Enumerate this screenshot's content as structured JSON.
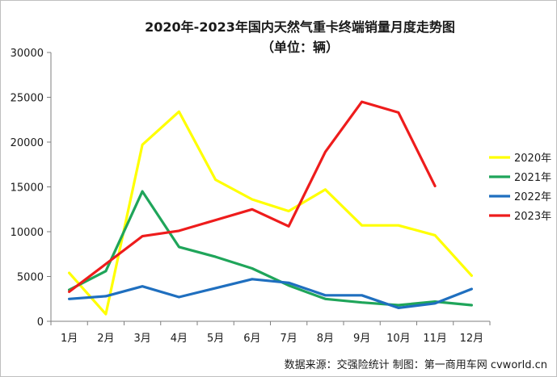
{
  "chart_data": {
    "type": "line",
    "title": "2020年-2023年国内天然气重卡终端销量月度走势图",
    "subtitle": "（单位：辆）",
    "categories": [
      "1月",
      "2月",
      "3月",
      "4月",
      "5月",
      "6月",
      "7月",
      "8月",
      "9月",
      "10月",
      "11月",
      "12月"
    ],
    "ylim": [
      0,
      30000
    ],
    "yticks": [
      0,
      5000,
      10000,
      15000,
      20000,
      25000,
      30000
    ],
    "ytick_labels": [
      "0",
      "5000",
      "10000",
      "15000",
      "20000",
      "25000",
      "30000"
    ],
    "grid": false,
    "legend_position": "right",
    "series": [
      {
        "name": "2020年",
        "color": "#ffff00",
        "values": [
          5400,
          800,
          19700,
          23400,
          15800,
          13600,
          12300,
          14700,
          10700,
          10700,
          9600,
          5100
        ]
      },
      {
        "name": "2021年",
        "color": "#1fa55a",
        "values": [
          3500,
          5600,
          14500,
          8300,
          7200,
          5900,
          4000,
          2500,
          2100,
          1800,
          2200,
          1800
        ]
      },
      {
        "name": "2022年",
        "color": "#1f6fbf",
        "values": [
          2500,
          2800,
          3900,
          2700,
          3700,
          4700,
          4300,
          2900,
          2900,
          1500,
          2000,
          3600
        ]
      },
      {
        "name": "2023年",
        "color": "#ee1c1c",
        "values": [
          3300,
          6400,
          9500,
          10100,
          11300,
          12500,
          10600,
          18900,
          24500,
          23300,
          15100,
          null
        ]
      }
    ]
  },
  "source_text": "数据来源：交强险统计   制图：第一商用车网 cvworld.cn"
}
